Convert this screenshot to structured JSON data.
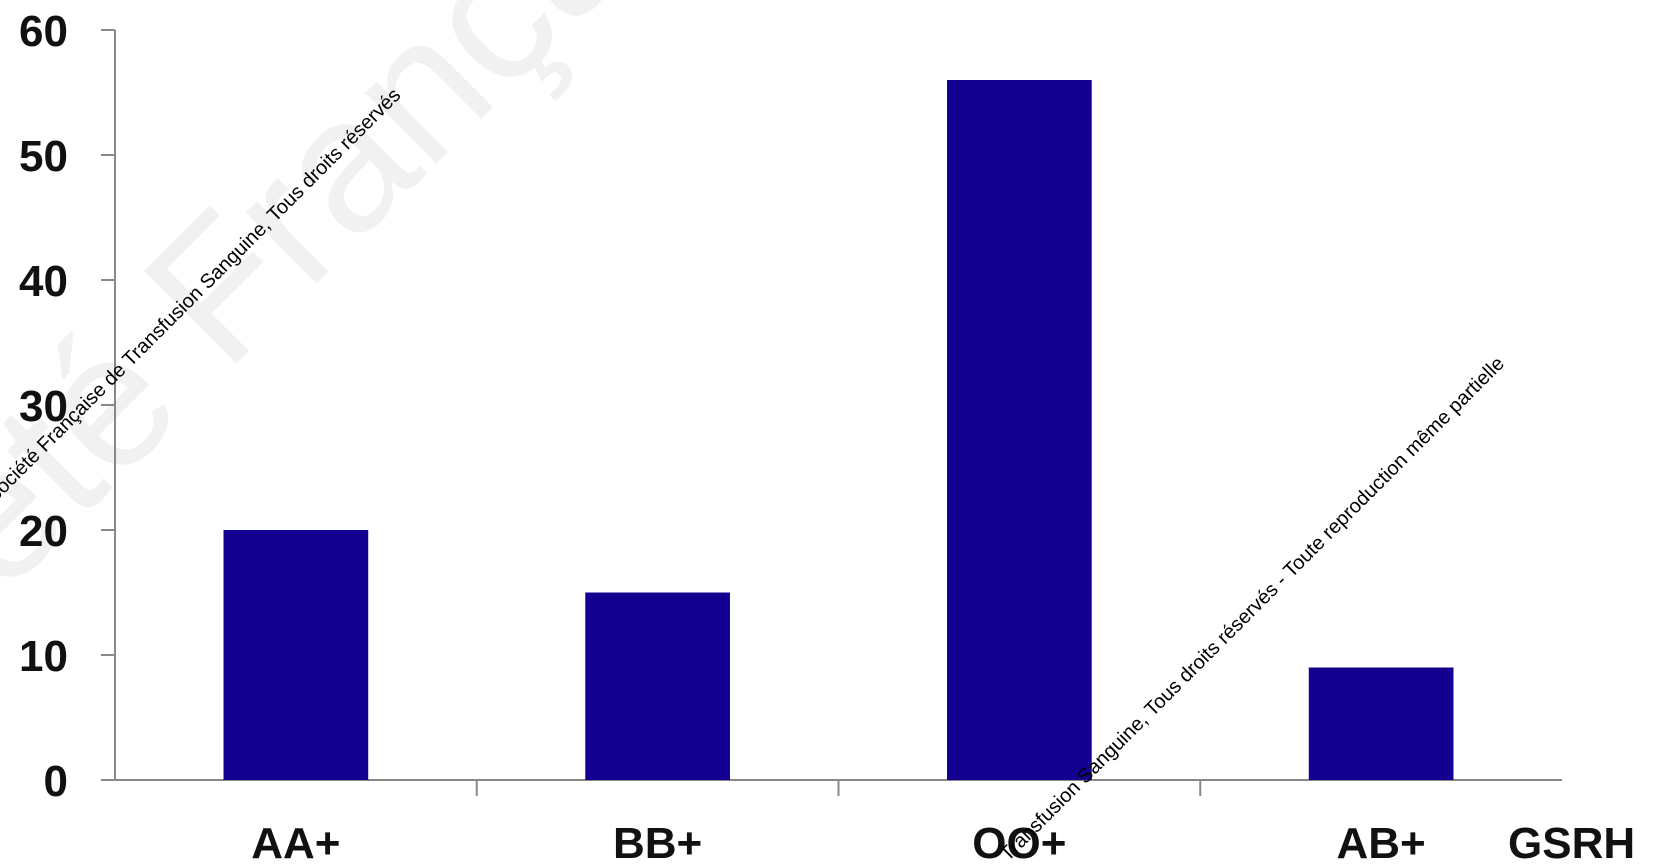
{
  "chart_data": {
    "type": "bar",
    "title": "",
    "xlabel": "GSRH",
    "ylabel": "",
    "categories": [
      "AA+",
      "BB+",
      "OO+",
      "AB+"
    ],
    "series": [
      {
        "values": [
          20,
          15,
          56,
          9
        ]
      }
    ],
    "ylim": [
      0,
      60
    ],
    "yticks": [
      0,
      10,
      20,
      30,
      40,
      50,
      60
    ],
    "bar_color": "#140090",
    "grid": false,
    "legend": "none"
  },
  "watermark": {
    "line1": "Société Française de Transfusion Sanguine, Tous droits réservés",
    "line2": "Transfusion Sanguine, Tous droits réservés - Toute reproduction même partielle",
    "background": "Société Française de Transfusion Sanguine © Tous droits réservés - Toute reproduction même partielle interdite"
  }
}
